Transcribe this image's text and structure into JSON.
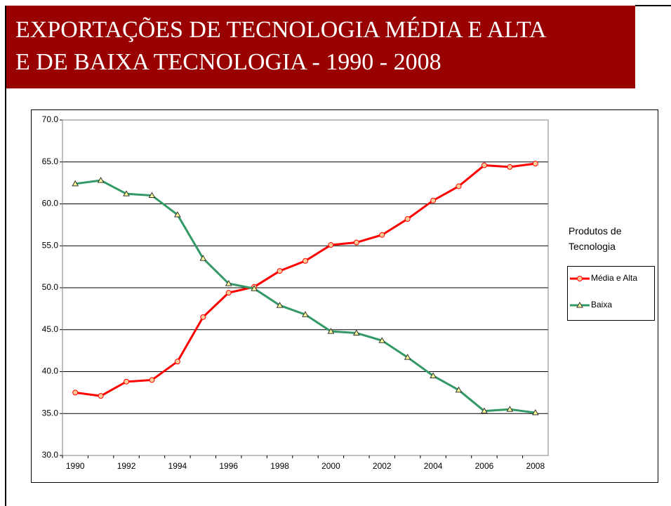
{
  "chart_data": {
    "type": "line",
    "title_lines": [
      "EXPORTAÇÕES DE TECNOLOGIA MÉDIA E ALTA",
      "E DE BAIXA TECNOLOGIA - 1990 - 2008"
    ],
    "categories": [
      "1990",
      null,
      "1992",
      null,
      "1994",
      null,
      "1996",
      null,
      "1998",
      null,
      "2000",
      null,
      "2002",
      null,
      "2004",
      null,
      "2006",
      null,
      "2008"
    ],
    "series": [
      {
        "name": "Média e Alta",
        "color": "#ff0000",
        "marker": "circle",
        "values": [
          37.5,
          37.1,
          38.8,
          39.0,
          41.2,
          46.5,
          49.4,
          50.1,
          52.0,
          53.2,
          55.1,
          55.4,
          56.3,
          58.2,
          60.4,
          62.1,
          64.6,
          64.4,
          64.8
        ]
      },
      {
        "name": "Baixa",
        "color": "#339966",
        "marker": "triangle",
        "values": [
          62.4,
          62.8,
          61.2,
          61.0,
          58.7,
          53.5,
          50.5,
          49.9,
          47.9,
          46.8,
          44.8,
          44.6,
          43.7,
          41.7,
          39.5,
          37.8,
          35.3,
          35.5,
          35.1
        ]
      }
    ],
    "legend_title": "Produtos de Tecnologia",
    "ylim": [
      30,
      70
    ],
    "yticks": [
      {
        "value": 30,
        "label": "30.0"
      },
      {
        "value": 35,
        "label": "35.0"
      },
      {
        "value": 40,
        "label": "40.0"
      },
      {
        "value": 45,
        "label": "45.0"
      },
      {
        "value": 50,
        "label": "50.0"
      },
      {
        "value": 55,
        "label": "55.0"
      },
      {
        "value": 60,
        "label": "60.0"
      },
      {
        "value": 65,
        "label": "65.0"
      },
      {
        "value": 70,
        "label": "70.0"
      }
    ],
    "grid": true,
    "legend": "right"
  }
}
